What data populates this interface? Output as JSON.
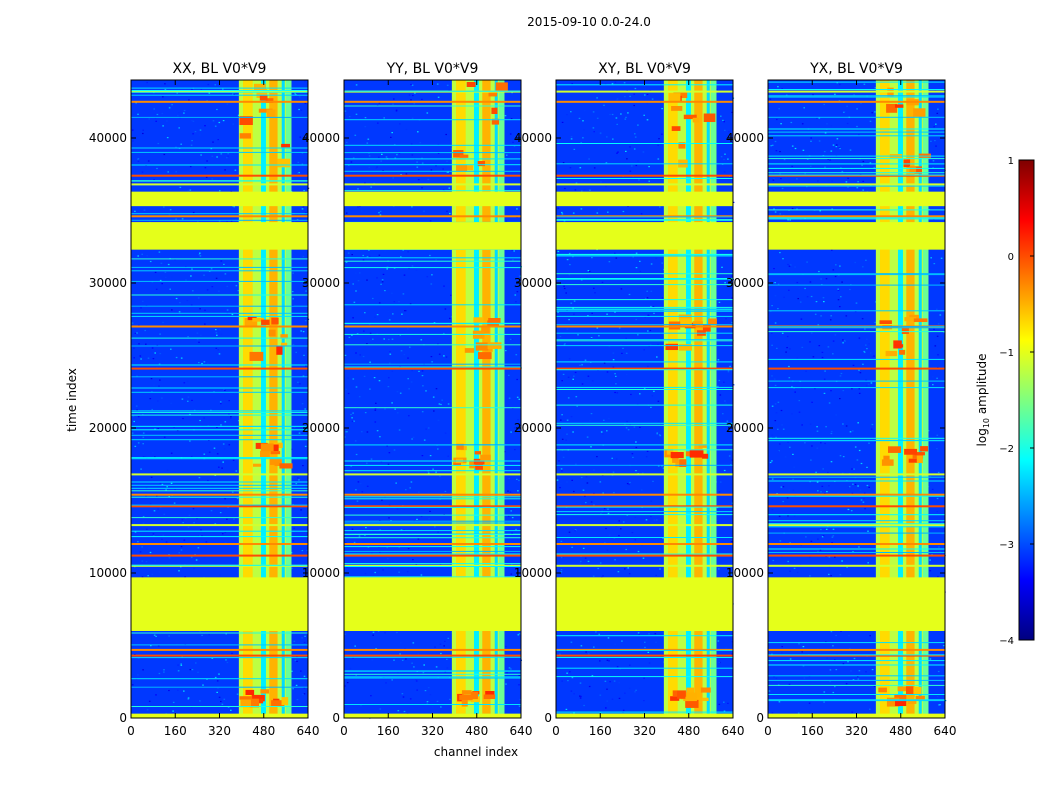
{
  "chart_data": {
    "type": "heatmap",
    "suptitle": "2015-09-10 0.0-24.0",
    "xlabel": "channel index",
    "ylabel": "time index",
    "xlim": [
      0,
      640
    ],
    "ylim": [
      0,
      44000
    ],
    "x_ticks": [
      0,
      160,
      320,
      480,
      640
    ],
    "x_tick_labels": [
      "0",
      "160",
      "320",
      "480",
      "640"
    ],
    "y_ticks": [
      0,
      10000,
      20000,
      30000,
      40000
    ],
    "y_tick_labels": [
      "0",
      "10000",
      "20000",
      "30000",
      "40000"
    ],
    "colorbar": {
      "label": "log₁₀ amplitude",
      "label_base": "log",
      "label_sub": "10",
      "label_rest": " amplitude",
      "range": [
        -4,
        1
      ],
      "ticks": [
        1,
        0,
        -1,
        -2,
        -3,
        -4
      ],
      "tick_labels": [
        "1",
        "0",
        "−1",
        "−2",
        "−3",
        "−4"
      ],
      "colormap": "jet",
      "colors": [
        "#00007f",
        "#0000ff",
        "#007fff",
        "#00ffff",
        "#7fff7f",
        "#ffff00",
        "#ff7f00",
        "#ff0000",
        "#7f0000"
      ]
    },
    "panels": [
      {
        "title": "XX, BL V0*V9",
        "polarization": "XX"
      },
      {
        "title": "YY, BL V0*V9",
        "polarization": "YY"
      },
      {
        "title": "XY, BL V0*V9",
        "polarization": "XY"
      },
      {
        "title": "YX, BL V0*V9",
        "polarization": "YX"
      }
    ],
    "flagged_time_ranges": [
      [
        0,
        300
      ],
      [
        6000,
        9700
      ],
      [
        32300,
        34200
      ],
      [
        35300,
        36300
      ]
    ],
    "flagged_value": -1.0,
    "background_value": -3.1,
    "rfi_channel_band": [
      390,
      580
    ],
    "rfi_value": -1.2,
    "rfi_hot_bursts": [
      [
        1200,
        2200
      ],
      [
        17500,
        19000
      ],
      [
        25000,
        28000
      ],
      [
        38000,
        44000
      ]
    ],
    "bright_time_lines": [
      4300,
      4700,
      10500,
      11200,
      12000,
      13300,
      14600,
      15400,
      16800,
      24100,
      27000,
      33000,
      33800,
      34600,
      36800,
      37400,
      42500,
      43200
    ],
    "colors": {
      "background": "#ffffff",
      "axis": "#000000",
      "flagged": "#9cff5a",
      "data_low": "#0a14e6",
      "rfi_band": "#7fff7f"
    }
  }
}
